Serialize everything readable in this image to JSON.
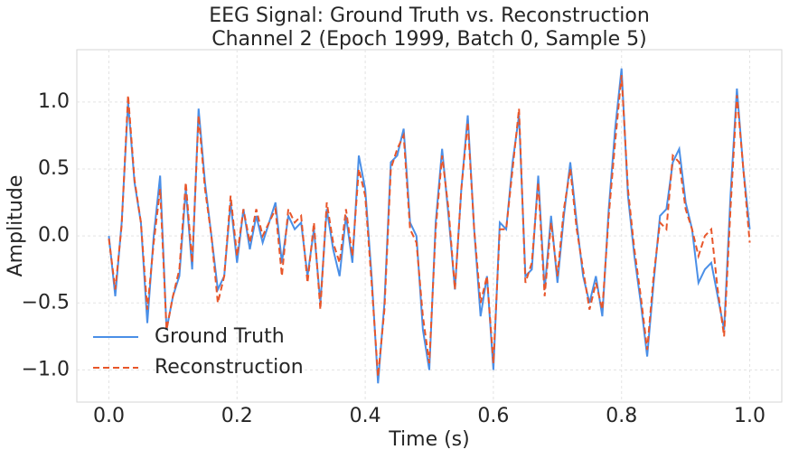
{
  "chart_data": {
    "type": "line",
    "title": "EEG Signal: Ground Truth vs. Reconstruction",
    "subtitle": "Channel 2 (Epoch 1999, Batch 0, Sample 5)",
    "xlabel": "Time (s)",
    "ylabel": "Amplitude",
    "x": [
      0,
      0.01,
      0.02,
      0.03,
      0.04,
      0.05,
      0.06,
      0.07,
      0.08,
      0.09,
      0.1,
      0.11,
      0.12,
      0.13,
      0.14,
      0.15,
      0.16,
      0.17,
      0.18,
      0.19,
      0.2,
      0.21,
      0.22,
      0.23,
      0.24,
      0.25,
      0.26,
      0.27,
      0.28,
      0.29,
      0.3,
      0.31,
      0.32,
      0.33,
      0.34,
      0.35,
      0.36,
      0.37,
      0.38,
      0.39,
      0.4,
      0.41,
      0.42,
      0.43,
      0.44,
      0.45,
      0.46,
      0.47,
      0.48,
      0.49,
      0.5,
      0.51,
      0.52,
      0.53,
      0.54,
      0.55,
      0.56,
      0.57,
      0.58,
      0.59,
      0.6,
      0.61,
      0.62,
      0.63,
      0.64,
      0.65,
      0.66,
      0.67,
      0.68,
      0.69,
      0.7,
      0.71,
      0.72,
      0.73,
      0.74,
      0.75,
      0.76,
      0.77,
      0.78,
      0.79,
      0.8,
      0.81,
      0.82,
      0.83,
      0.84,
      0.85,
      0.86,
      0.87,
      0.88,
      0.89,
      0.9,
      0.91,
      0.92,
      0.93,
      0.94,
      0.95,
      0.96,
      0.97,
      0.98,
      0.99,
      1
    ],
    "series": [
      {
        "name": "Ground Truth",
        "color": "#4a8fe7",
        "linestyle": "solid",
        "values": [
          0.0,
          -0.45,
          0.1,
          1.0,
          0.4,
          0.1,
          -0.65,
          0.0,
          0.45,
          -0.7,
          -0.45,
          -0.3,
          0.35,
          -0.25,
          0.95,
          0.4,
          0.0,
          -0.4,
          -0.3,
          0.25,
          -0.2,
          0.2,
          -0.1,
          0.15,
          -0.05,
          0.1,
          0.25,
          -0.2,
          0.15,
          0.05,
          0.1,
          -0.3,
          0.05,
          -0.5,
          0.2,
          -0.1,
          -0.3,
          0.15,
          -0.2,
          0.6,
          0.35,
          -0.3,
          -1.1,
          -0.5,
          0.55,
          0.6,
          0.8,
          0.1,
          0.0,
          -0.7,
          -1.0,
          0.1,
          0.65,
          0.15,
          -0.4,
          0.35,
          0.9,
          0.05,
          -0.6,
          -0.3,
          -1.0,
          0.1,
          0.05,
          0.55,
          0.9,
          -0.3,
          -0.25,
          0.45,
          -0.4,
          0.15,
          -0.35,
          0.15,
          0.55,
          0.1,
          -0.3,
          -0.5,
          -0.3,
          -0.6,
          0.2,
          0.8,
          1.25,
          0.3,
          -0.15,
          -0.5,
          -0.9,
          -0.35,
          0.15,
          0.2,
          0.55,
          0.65,
          0.25,
          0.05,
          -0.35,
          -0.25,
          -0.2,
          -0.45,
          -0.7,
          0.3,
          1.1,
          0.5,
          0.05
        ]
      },
      {
        "name": "Reconstruction",
        "color": "#e8562a",
        "linestyle": "dashed",
        "values": [
          -0.02,
          -0.4,
          0.08,
          1.05,
          0.42,
          0.1,
          -0.55,
          -0.05,
          0.35,
          -0.7,
          -0.45,
          -0.25,
          0.4,
          -0.2,
          0.9,
          0.35,
          0.0,
          -0.5,
          -0.3,
          0.3,
          -0.15,
          0.2,
          -0.05,
          0.2,
          0.0,
          0.1,
          0.2,
          -0.3,
          0.2,
          0.1,
          0.15,
          -0.35,
          0.1,
          -0.55,
          0.25,
          -0.05,
          -0.2,
          0.2,
          -0.15,
          0.5,
          0.3,
          -0.35,
          -1.05,
          -0.55,
          0.5,
          0.65,
          0.75,
          0.05,
          -0.05,
          -0.6,
          -0.95,
          0.05,
          0.6,
          0.2,
          -0.4,
          0.35,
          0.85,
          0.05,
          -0.5,
          -0.3,
          -0.95,
          0.05,
          0.05,
          0.5,
          0.95,
          -0.35,
          -0.2,
          0.4,
          -0.45,
          0.1,
          -0.3,
          0.2,
          0.5,
          0.05,
          -0.25,
          -0.55,
          -0.35,
          -0.55,
          0.15,
          0.7,
          1.2,
          0.35,
          -0.1,
          -0.45,
          -0.85,
          -0.3,
          0.1,
          0.05,
          0.6,
          0.55,
          0.2,
          0.05,
          -0.15,
          0.0,
          0.05,
          -0.4,
          -0.75,
          0.2,
          1.05,
          0.5,
          -0.05
        ]
      }
    ],
    "xlim": [
      -0.05,
      1.05
    ],
    "ylim": [
      -1.24,
      1.39
    ],
    "xticks": [
      {
        "value": 0,
        "label": "0.0"
      },
      0.2,
      0.4,
      0.6,
      0.8,
      {
        "value": 1,
        "label": "1.0"
      }
    ],
    "yticks": [
      {
        "value": -1,
        "label": "−1.0"
      },
      {
        "value": -0.5,
        "label": "−0.5"
      },
      {
        "value": 0,
        "label": "0.0"
      },
      0.5,
      {
        "value": 1,
        "label": "1.0"
      }
    ],
    "grid": true,
    "legend": "lower left"
  }
}
